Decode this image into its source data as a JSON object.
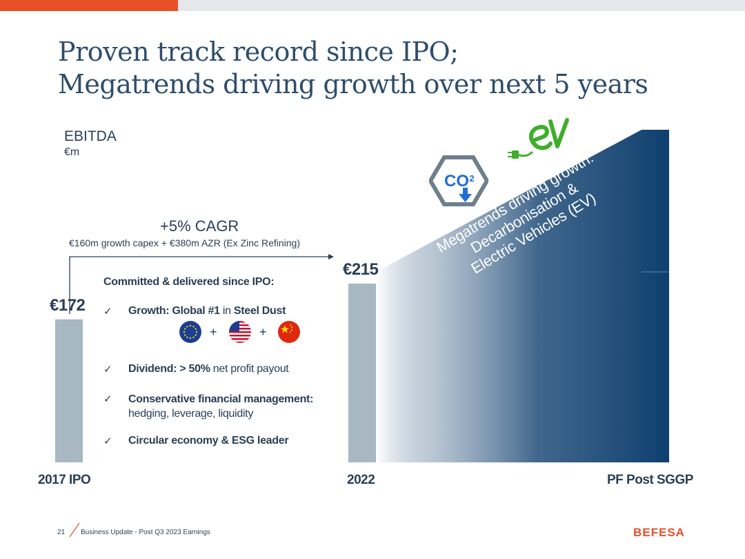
{
  "slide": {
    "title_line1": "Proven track record since IPO;",
    "title_line2": "Megatrends driving growth over next 5 years",
    "metric": "EBITDA",
    "unit": "€m"
  },
  "chart_data": {
    "type": "bar",
    "title": "EBITDA",
    "ylabel": "€m",
    "categories": [
      "2017 IPO",
      "2022",
      "PF Post SGGP"
    ],
    "values": [
      172,
      215,
      null
    ],
    "value_labels": [
      "€172",
      "€215",
      ""
    ],
    "ylim": [
      0,
      400
    ],
    "annotations": {
      "cagr": "+5% CAGR",
      "cagr_note": "€160m growth capex + €380m AZR (Ex Zinc Refining)",
      "growth_wedge": "Megatrends driving growth: Decarbonisation & Electric Vehicles (EV)"
    }
  },
  "megatrends": {
    "line1": "Megatrends driving growth:",
    "line2": "Decarbonisation &",
    "line3": "Electric Vehicles (EV)",
    "icons": [
      "co2-reduction-icon",
      "ev-plug-icon"
    ]
  },
  "highlights": {
    "heading": "Committed & delivered since IPO:",
    "b1_bold": "Growth: Global #1",
    "b1_mid": " in ",
    "b1_bold2": "Steel Dust",
    "flag_plus1": "+",
    "flag_plus2": "+",
    "b2_bold": "Dividend: > 50%",
    "b2_rest": " net profit payout",
    "b3_bold": "Conservative financial management:",
    "b3_rest": "hedging, leverage, liquidity",
    "b4_bold": "Circular economy & ESG leader",
    "check": "✓",
    "flags": [
      "eu-flag-icon",
      "us-flag-icon",
      "china-flag-icon"
    ]
  },
  "footer": {
    "page": "21",
    "text": "Business Update - Post Q3 2023 Earnings",
    "logo": "BEFESA"
  },
  "colors": {
    "orange": "#e8502a",
    "navy": "#0e3f6e",
    "bar": "#a7b8c3",
    "text": "#2a3f55",
    "green": "#3fae2a"
  }
}
